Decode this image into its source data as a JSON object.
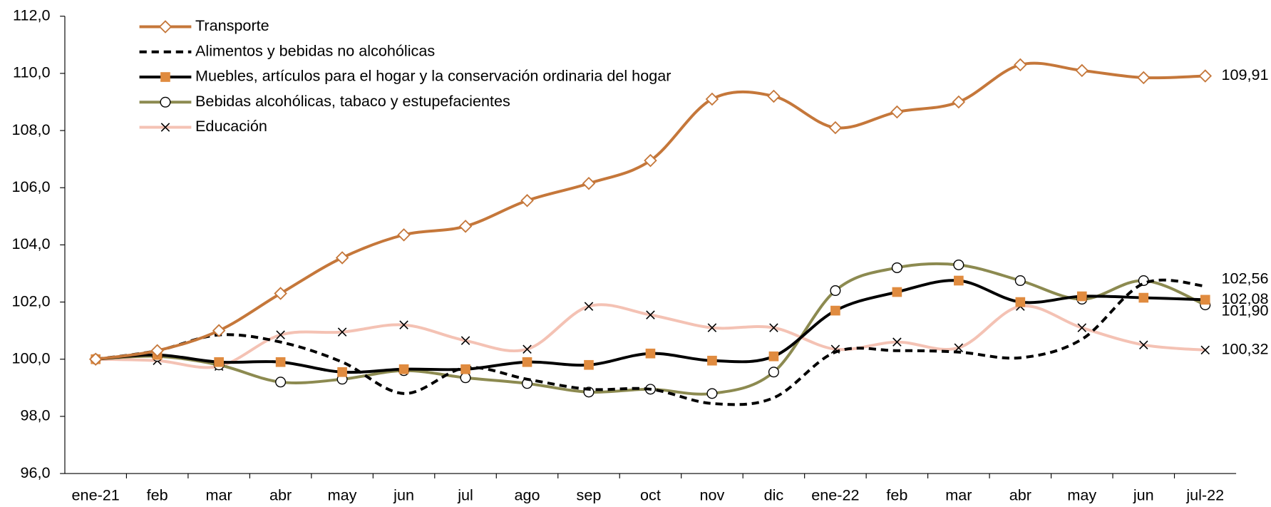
{
  "chart_data": {
    "type": "line",
    "categories": [
      "ene-21",
      "feb",
      "mar",
      "abr",
      "may",
      "jun",
      "jul",
      "ago",
      "sep",
      "oct",
      "nov",
      "dic",
      "ene-22",
      "feb",
      "mar",
      "abr",
      "may",
      "jun",
      "jul-22"
    ],
    "ylim": [
      96,
      112
    ],
    "yticks": [
      {
        "value": 96,
        "label": "96,0"
      },
      {
        "value": 98,
        "label": "98,0"
      },
      {
        "value": 100,
        "label": "100,0"
      },
      {
        "value": 102,
        "label": "102,0"
      },
      {
        "value": 104,
        "label": "104,0"
      },
      {
        "value": 106,
        "label": "106,0"
      },
      {
        "value": 108,
        "label": "108,0"
      },
      {
        "value": 110,
        "label": "110,0"
      },
      {
        "value": 112,
        "label": "112,0"
      }
    ],
    "smooth": true,
    "series": [
      {
        "name": "Transporte",
        "color": "#c5773a",
        "marker": "diamond",
        "line_style": "solid",
        "label_color": "#d98c4c",
        "values": [
          100.0,
          100.3,
          101.0,
          102.3,
          103.55,
          104.35,
          104.65,
          105.55,
          106.15,
          106.95,
          109.1,
          109.2,
          108.1,
          108.65,
          109.0,
          110.3,
          110.1,
          109.85,
          109.91
        ],
        "value_labels": [
          null,
          null,
          null,
          null,
          null,
          null,
          null,
          null,
          null,
          null,
          null,
          null,
          null,
          null,
          null,
          null,
          null,
          null,
          "109,91"
        ]
      },
      {
        "name": "Alimentos y bebidas no alcohólicas",
        "color": "#000000",
        "marker": "none",
        "line_style": "dashed",
        "label_color": "#000000",
        "values": [
          100.0,
          100.3,
          100.85,
          100.6,
          99.9,
          98.8,
          99.7,
          99.3,
          98.95,
          98.95,
          98.45,
          98.65,
          100.25,
          100.3,
          100.25,
          100.05,
          100.7,
          102.65,
          102.56
        ],
        "value_labels": [
          null,
          null,
          null,
          null,
          null,
          null,
          null,
          null,
          null,
          null,
          null,
          null,
          null,
          null,
          null,
          null,
          null,
          null,
          "102,56"
        ]
      },
      {
        "name": "Muebles, artículos para el hogar y la conservación ordinaria del hogar",
        "color": "#000000",
        "marker": "square",
        "marker_color": "#e08b3f",
        "line_style": "solid",
        "label_color": "#c0504d",
        "values": [
          100.0,
          100.15,
          99.9,
          99.9,
          99.55,
          99.65,
          99.65,
          99.9,
          99.8,
          100.2,
          99.95,
          100.1,
          101.7,
          102.35,
          102.75,
          102.0,
          102.2,
          102.15,
          102.08
        ],
        "value_labels": [
          null,
          null,
          null,
          null,
          null,
          null,
          null,
          null,
          null,
          null,
          null,
          null,
          null,
          null,
          null,
          null,
          null,
          null,
          "102,08"
        ]
      },
      {
        "name": "Bebidas alcohólicas, tabaco y estupefacientes",
        "color": "#8c8a50",
        "marker": "circle",
        "line_style": "solid",
        "label_color": "#8b9a00",
        "values": [
          100.0,
          100.1,
          99.8,
          99.2,
          99.3,
          99.6,
          99.35,
          99.15,
          98.85,
          98.95,
          98.8,
          99.55,
          102.4,
          103.2,
          103.3,
          102.75,
          102.1,
          102.75,
          101.9
        ],
        "value_labels": [
          null,
          null,
          null,
          null,
          null,
          null,
          null,
          null,
          null,
          null,
          null,
          null,
          null,
          null,
          null,
          null,
          null,
          null,
          "101,90"
        ]
      },
      {
        "name": "Educación",
        "color": "#f4c2b4",
        "marker": "x",
        "line_style": "solid",
        "label_color": "#000000",
        "values": [
          100.0,
          99.95,
          99.75,
          100.85,
          100.95,
          101.2,
          100.65,
          100.35,
          101.85,
          101.55,
          101.1,
          101.1,
          100.35,
          100.6,
          100.4,
          101.85,
          101.1,
          100.5,
          100.32
        ],
        "value_labels": [
          null,
          null,
          null,
          null,
          null,
          null,
          null,
          null,
          null,
          null,
          null,
          null,
          null,
          null,
          null,
          null,
          null,
          null,
          "100,32"
        ]
      }
    ]
  }
}
